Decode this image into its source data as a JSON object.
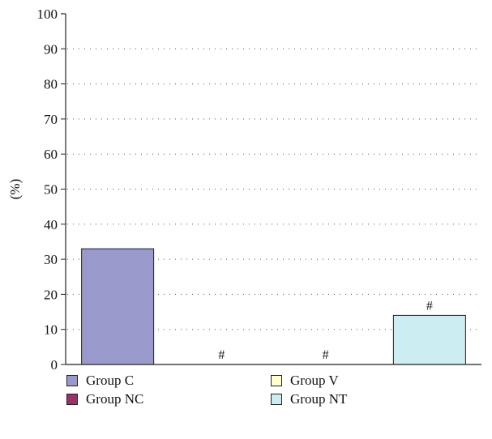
{
  "chart_data": {
    "type": "bar",
    "categories": [
      "Group C",
      "Group NC",
      "Group V",
      "Group NT"
    ],
    "values": [
      33,
      0,
      0,
      14
    ],
    "annotations": [
      "",
      "#",
      "#",
      "#"
    ],
    "ylabel": "(%)",
    "ylim": [
      0,
      100
    ],
    "yticks": [
      0,
      10,
      20,
      30,
      40,
      50,
      60,
      70,
      80,
      90,
      100
    ],
    "ytick_labels": [
      "0",
      "10",
      "20",
      "30",
      "40",
      "50",
      "60",
      "70",
      "80",
      "90",
      "100"
    ],
    "grid": "dotted horizontal",
    "legend_placement": "bottom",
    "legend": [
      {
        "label": "Group C",
        "color": "#9999cc"
      },
      {
        "label": "Group V",
        "color": "#ffffcc"
      },
      {
        "label": "Group NC",
        "color": "#993366"
      },
      {
        "label": "Group NT",
        "color": "#cceef2"
      }
    ],
    "colors": [
      "#9999cc",
      "#993366",
      "#ffffcc",
      "#cceef2"
    ]
  }
}
